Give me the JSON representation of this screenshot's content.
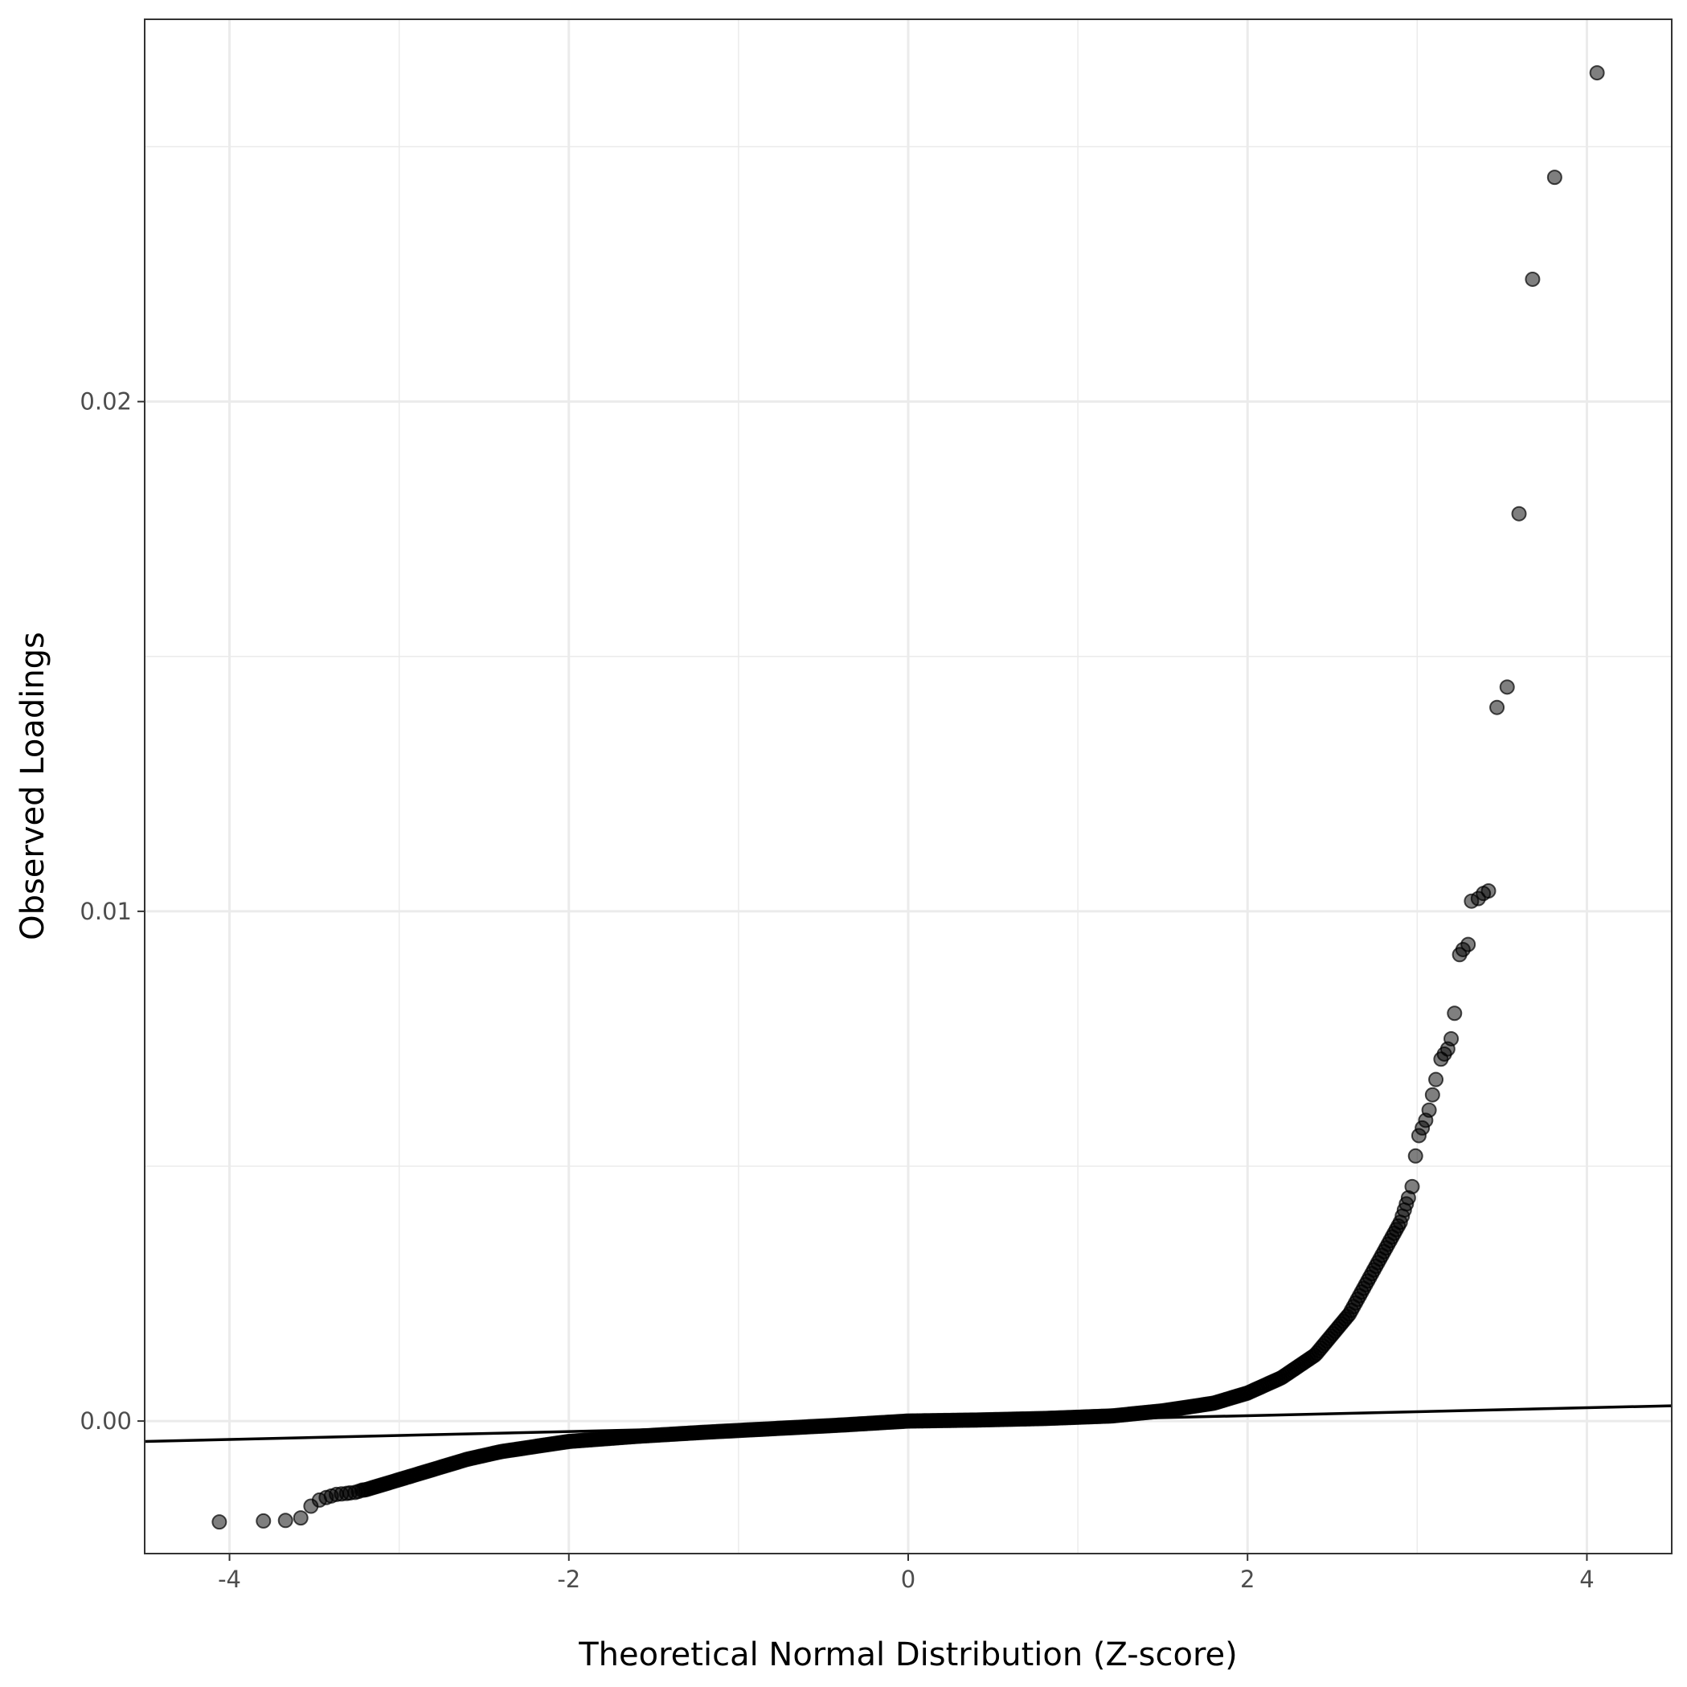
{
  "chart_data": {
    "type": "scatter",
    "title": "",
    "xlabel": "Theoretical Normal Distribution (Z-score)",
    "ylabel": "Observed Loadings",
    "xlim": [
      -4.5,
      4.5
    ],
    "ylim": [
      -0.0026,
      0.0275
    ],
    "x_ticks": [
      -4,
      -2,
      0,
      2,
      4
    ],
    "x_tick_labels": [
      "-4",
      "-2",
      "0",
      "2",
      "4"
    ],
    "y_ticks": [
      0.0,
      0.01,
      0.02
    ],
    "y_tick_labels": [
      "0.00",
      "0.01",
      "0.02"
    ],
    "x_minor_gridlines": [
      -3,
      -1,
      1,
      3
    ],
    "y_minor_gridlines": [
      0.005,
      0.015,
      0.025
    ],
    "grid": true,
    "legend": "none",
    "colors": {
      "points": "#000000",
      "reference_line": "#000000",
      "grid": "#ebebeb",
      "panel_border": "#333333"
    },
    "reference_line": {
      "x": [
        -4.5,
        4.5
      ],
      "y": [
        -0.0004,
        0.0003
      ]
    },
    "curve_anchors": {
      "x": [
        -3.5,
        -3.2,
        -3.0,
        -2.8,
        -2.6,
        -2.4,
        -2.2,
        -2.0,
        -1.6,
        -1.2,
        -0.8,
        -0.4,
        0.0,
        0.4,
        0.8,
        1.2,
        1.5,
        1.8,
        2.0,
        2.2,
        2.4,
        2.6,
        2.7,
        2.8,
        2.9,
        2.95
      ],
      "y": [
        -0.00145,
        -0.00135,
        -0.00115,
        -0.00095,
        -0.00075,
        -0.0006,
        -0.0005,
        -0.0004,
        -0.0003,
        -0.00022,
        -0.00015,
        -8e-05,
        0.0,
        2e-05,
        5e-05,
        0.0001,
        0.0002,
        0.00035,
        0.00055,
        0.00085,
        0.0013,
        0.0021,
        0.0027,
        0.0033,
        0.0039,
        0.0044
      ]
    },
    "series": [
      {
        "x": [
          -4.06,
          -3.8,
          -3.67,
          -3.58,
          -3.52,
          -3.47,
          -3.43,
          -3.4,
          -3.37,
          -3.34,
          -3.31,
          -3.29,
          -3.26,
          -3.24,
          2.97,
          2.99,
          3.01,
          3.03,
          3.05,
          3.07,
          3.09,
          3.11,
          3.14,
          3.16,
          3.18,
          3.2,
          3.22,
          3.25,
          3.27,
          3.3,
          3.32,
          3.36,
          3.39,
          3.42,
          3.47,
          3.53,
          3.6,
          3.68,
          3.81,
          4.06
        ],
        "y": [
          -0.00198,
          -0.00196,
          -0.00195,
          -0.0019,
          -0.00167,
          -0.00155,
          -0.0015,
          -0.00147,
          -0.00144,
          -0.00143,
          -0.00142,
          -0.00141,
          -0.0014,
          -0.00138,
          0.0046,
          0.0052,
          0.0056,
          0.00575,
          0.0059,
          0.0061,
          0.0064,
          0.0067,
          0.0071,
          0.0072,
          0.0073,
          0.0075,
          0.008,
          0.00915,
          0.00925,
          0.00935,
          0.0102,
          0.01025,
          0.01035,
          0.0104,
          0.014,
          0.0144,
          0.0178,
          0.0224,
          0.0244,
          0.02645
        ]
      }
    ]
  }
}
